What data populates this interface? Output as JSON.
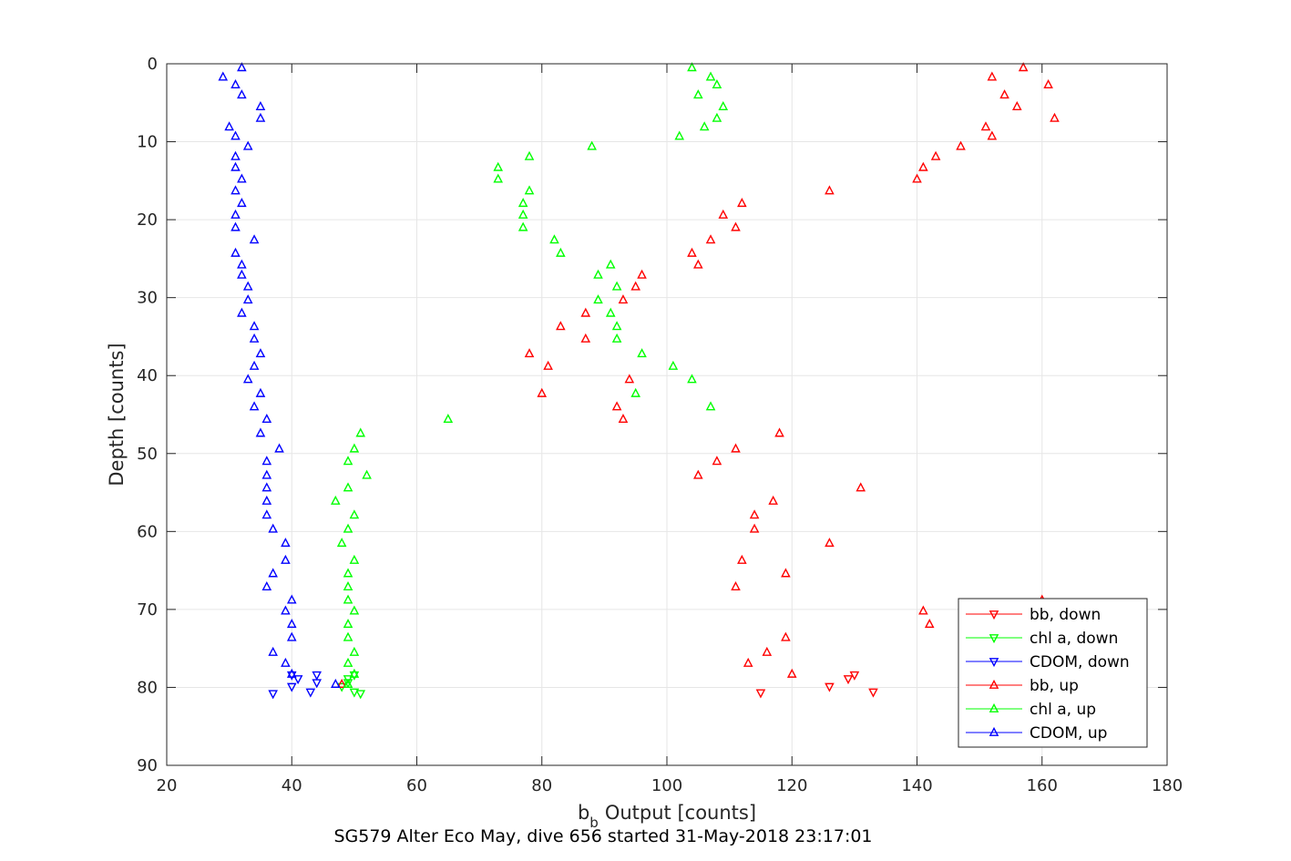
{
  "chart_data": {
    "type": "scatter",
    "caption": "SG579 Alter Eco May, dive 656 started 31-May-2018 23:17:01",
    "xlabel": "Output [counts]",
    "xlabel_prefix": "b",
    "xlabel_subscript": "b",
    "ylabel": "Depth [counts]",
    "xlim": [
      20,
      180
    ],
    "ylim": [
      0,
      90
    ],
    "y_reversed": true,
    "grid": true,
    "legend_position": "bottom-right",
    "xticks": [
      "20",
      "40",
      "60",
      "80",
      "100",
      "120",
      "140",
      "160",
      "180"
    ],
    "yticks": [
      "0",
      "10",
      "20",
      "30",
      "40",
      "50",
      "60",
      "70",
      "80",
      "90"
    ],
    "series": [
      {
        "name": "bb, down",
        "color": "#ff0000",
        "marker": "triangle-down",
        "points": [
          [
            115,
            80.7
          ],
          [
            126,
            79.9
          ],
          [
            129,
            78.9
          ],
          [
            130,
            78.4
          ],
          [
            133,
            80.6
          ]
        ]
      },
      {
        "name": "chl a, down",
        "color": "#00ff00",
        "marker": "triangle-down",
        "points": [
          [
            48,
            79.9
          ],
          [
            49,
            79.4
          ],
          [
            49,
            78.9
          ],
          [
            50,
            78.4
          ],
          [
            50,
            80.6
          ],
          [
            51,
            80.8
          ]
        ]
      },
      {
        "name": "CDOM, down",
        "color": "#0000ff",
        "marker": "triangle-down",
        "points": [
          [
            37,
            80.8
          ],
          [
            40,
            79.9
          ],
          [
            40,
            78.4
          ],
          [
            41,
            78.9
          ],
          [
            43,
            80.6
          ],
          [
            44,
            78.4
          ],
          [
            44,
            79.4
          ]
        ]
      },
      {
        "name": "bb, up",
        "color": "#ff0000",
        "marker": "triangle-up",
        "points": [
          [
            157,
            0.5
          ],
          [
            152,
            1.7
          ],
          [
            161,
            2.7
          ],
          [
            154,
            4.0
          ],
          [
            156,
            5.5
          ],
          [
            162,
            7.0
          ],
          [
            151,
            8.1
          ],
          [
            152,
            9.3
          ],
          [
            147,
            10.6
          ],
          [
            143,
            11.9
          ],
          [
            141,
            13.3
          ],
          [
            140,
            14.8
          ],
          [
            126,
            16.3
          ],
          [
            112,
            17.9
          ],
          [
            109,
            19.4
          ],
          [
            111,
            21.0
          ],
          [
            107,
            22.6
          ],
          [
            104,
            24.3
          ],
          [
            105,
            25.8
          ],
          [
            96,
            27.1
          ],
          [
            95,
            28.6
          ],
          [
            93,
            30.3
          ],
          [
            87,
            32.0
          ],
          [
            83,
            33.7
          ],
          [
            87,
            35.3
          ],
          [
            78,
            37.2
          ],
          [
            81,
            38.8
          ],
          [
            94,
            40.5
          ],
          [
            80,
            42.3
          ],
          [
            92,
            44.0
          ],
          [
            93,
            45.6
          ],
          [
            118,
            47.4
          ],
          [
            111,
            49.4
          ],
          [
            108,
            51.0
          ],
          [
            105,
            52.8
          ],
          [
            131,
            54.4
          ],
          [
            117,
            56.1
          ],
          [
            114,
            57.9
          ],
          [
            114,
            59.7
          ],
          [
            126,
            61.5
          ],
          [
            112,
            63.7
          ],
          [
            119,
            65.4
          ],
          [
            111,
            67.1
          ],
          [
            160,
            68.8
          ],
          [
            141,
            70.2
          ],
          [
            142,
            71.9
          ],
          [
            119,
            73.6
          ],
          [
            116,
            75.5
          ],
          [
            113,
            76.9
          ],
          [
            120,
            78.3
          ],
          [
            48,
            79.6
          ]
        ]
      },
      {
        "name": "chl a, up",
        "color": "#00ff00",
        "marker": "triangle-up",
        "points": [
          [
            104,
            0.5
          ],
          [
            107,
            1.7
          ],
          [
            108,
            2.7
          ],
          [
            105,
            4.0
          ],
          [
            109,
            5.5
          ],
          [
            108,
            7.0
          ],
          [
            106,
            8.1
          ],
          [
            102,
            9.3
          ],
          [
            88,
            10.6
          ],
          [
            78,
            11.9
          ],
          [
            73,
            13.3
          ],
          [
            73,
            14.8
          ],
          [
            78,
            16.3
          ],
          [
            77,
            17.9
          ],
          [
            77,
            19.4
          ],
          [
            77,
            21.0
          ],
          [
            82,
            22.6
          ],
          [
            83,
            24.3
          ],
          [
            91,
            25.8
          ],
          [
            89,
            27.1
          ],
          [
            92,
            28.6
          ],
          [
            89,
            30.3
          ],
          [
            91,
            32.0
          ],
          [
            92,
            33.7
          ],
          [
            92,
            35.3
          ],
          [
            96,
            37.2
          ],
          [
            101,
            38.8
          ],
          [
            104,
            40.5
          ],
          [
            95,
            42.3
          ],
          [
            107,
            44.0
          ],
          [
            65,
            45.6
          ],
          [
            51,
            47.4
          ],
          [
            50,
            49.4
          ],
          [
            49,
            51.0
          ],
          [
            52,
            52.8
          ],
          [
            49,
            54.4
          ],
          [
            47,
            56.1
          ],
          [
            50,
            57.9
          ],
          [
            49,
            59.7
          ],
          [
            48,
            61.5
          ],
          [
            50,
            63.7
          ],
          [
            49,
            65.4
          ],
          [
            49,
            67.1
          ],
          [
            49,
            68.8
          ],
          [
            50,
            70.2
          ],
          [
            49,
            71.9
          ],
          [
            49,
            73.6
          ],
          [
            50,
            75.5
          ],
          [
            49,
            76.9
          ],
          [
            50,
            78.3
          ],
          [
            49,
            79.6
          ]
        ]
      },
      {
        "name": "CDOM, up",
        "color": "#0000ff",
        "marker": "triangle-up",
        "points": [
          [
            32,
            0.5
          ],
          [
            29,
            1.7
          ],
          [
            31,
            2.7
          ],
          [
            32,
            4.0
          ],
          [
            35,
            5.5
          ],
          [
            35,
            7.0
          ],
          [
            30,
            8.1
          ],
          [
            31,
            9.3
          ],
          [
            33,
            10.6
          ],
          [
            31,
            11.9
          ],
          [
            31,
            13.3
          ],
          [
            32,
            14.8
          ],
          [
            31,
            16.3
          ],
          [
            32,
            17.9
          ],
          [
            31,
            19.4
          ],
          [
            31,
            21.0
          ],
          [
            34,
            22.6
          ],
          [
            31,
            24.3
          ],
          [
            32,
            25.8
          ],
          [
            32,
            27.1
          ],
          [
            33,
            28.6
          ],
          [
            33,
            30.3
          ],
          [
            32,
            32.0
          ],
          [
            34,
            33.7
          ],
          [
            34,
            35.3
          ],
          [
            35,
            37.2
          ],
          [
            34,
            38.8
          ],
          [
            33,
            40.5
          ],
          [
            35,
            42.3
          ],
          [
            34,
            44.0
          ],
          [
            36,
            45.6
          ],
          [
            35,
            47.4
          ],
          [
            38,
            49.4
          ],
          [
            36,
            51.0
          ],
          [
            36,
            52.8
          ],
          [
            36,
            54.4
          ],
          [
            36,
            56.1
          ],
          [
            36,
            57.9
          ],
          [
            37,
            59.7
          ],
          [
            39,
            61.5
          ],
          [
            39,
            63.7
          ],
          [
            37,
            65.4
          ],
          [
            36,
            67.1
          ],
          [
            40,
            68.8
          ],
          [
            39,
            70.2
          ],
          [
            40,
            71.9
          ],
          [
            40,
            73.6
          ],
          [
            37,
            75.5
          ],
          [
            39,
            76.9
          ],
          [
            40,
            78.3
          ],
          [
            47,
            79.6
          ]
        ]
      }
    ]
  }
}
